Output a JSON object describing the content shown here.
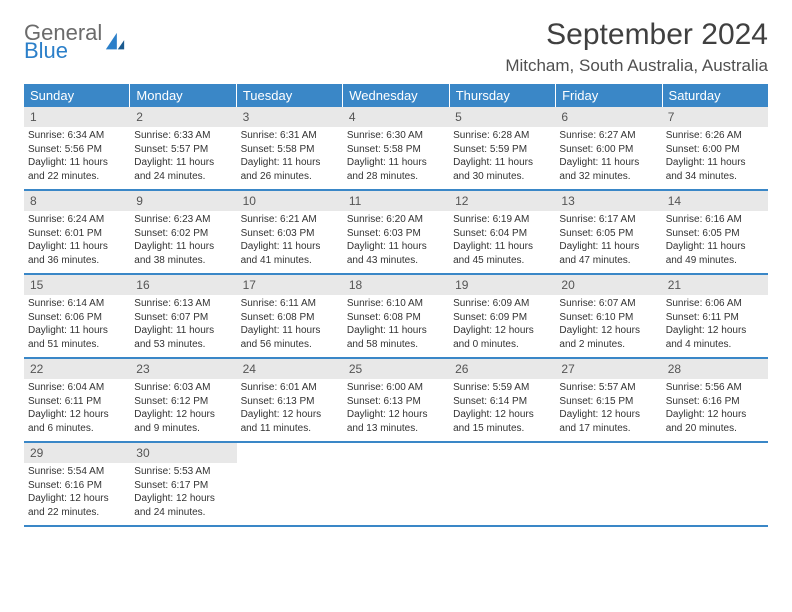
{
  "brand": {
    "word1": "General",
    "word2": "Blue"
  },
  "title": "September 2024",
  "location": "Mitcham, South Australia, Australia",
  "colors": {
    "header_bg": "#3a87c7",
    "header_text": "#ffffff",
    "daynum_bg": "#e8e8e8",
    "border": "#3a87c7",
    "brand_gray": "#6b6b6b",
    "brand_blue": "#2b7fc9"
  },
  "weekdays": [
    "Sunday",
    "Monday",
    "Tuesday",
    "Wednesday",
    "Thursday",
    "Friday",
    "Saturday"
  ],
  "weeks": [
    [
      {
        "n": "1",
        "sr": "Sunrise: 6:34 AM",
        "ss": "Sunset: 5:56 PM",
        "d1": "Daylight: 11 hours",
        "d2": "and 22 minutes."
      },
      {
        "n": "2",
        "sr": "Sunrise: 6:33 AM",
        "ss": "Sunset: 5:57 PM",
        "d1": "Daylight: 11 hours",
        "d2": "and 24 minutes."
      },
      {
        "n": "3",
        "sr": "Sunrise: 6:31 AM",
        "ss": "Sunset: 5:58 PM",
        "d1": "Daylight: 11 hours",
        "d2": "and 26 minutes."
      },
      {
        "n": "4",
        "sr": "Sunrise: 6:30 AM",
        "ss": "Sunset: 5:58 PM",
        "d1": "Daylight: 11 hours",
        "d2": "and 28 minutes."
      },
      {
        "n": "5",
        "sr": "Sunrise: 6:28 AM",
        "ss": "Sunset: 5:59 PM",
        "d1": "Daylight: 11 hours",
        "d2": "and 30 minutes."
      },
      {
        "n": "6",
        "sr": "Sunrise: 6:27 AM",
        "ss": "Sunset: 6:00 PM",
        "d1": "Daylight: 11 hours",
        "d2": "and 32 minutes."
      },
      {
        "n": "7",
        "sr": "Sunrise: 6:26 AM",
        "ss": "Sunset: 6:00 PM",
        "d1": "Daylight: 11 hours",
        "d2": "and 34 minutes."
      }
    ],
    [
      {
        "n": "8",
        "sr": "Sunrise: 6:24 AM",
        "ss": "Sunset: 6:01 PM",
        "d1": "Daylight: 11 hours",
        "d2": "and 36 minutes."
      },
      {
        "n": "9",
        "sr": "Sunrise: 6:23 AM",
        "ss": "Sunset: 6:02 PM",
        "d1": "Daylight: 11 hours",
        "d2": "and 38 minutes."
      },
      {
        "n": "10",
        "sr": "Sunrise: 6:21 AM",
        "ss": "Sunset: 6:03 PM",
        "d1": "Daylight: 11 hours",
        "d2": "and 41 minutes."
      },
      {
        "n": "11",
        "sr": "Sunrise: 6:20 AM",
        "ss": "Sunset: 6:03 PM",
        "d1": "Daylight: 11 hours",
        "d2": "and 43 minutes."
      },
      {
        "n": "12",
        "sr": "Sunrise: 6:19 AM",
        "ss": "Sunset: 6:04 PM",
        "d1": "Daylight: 11 hours",
        "d2": "and 45 minutes."
      },
      {
        "n": "13",
        "sr": "Sunrise: 6:17 AM",
        "ss": "Sunset: 6:05 PM",
        "d1": "Daylight: 11 hours",
        "d2": "and 47 minutes."
      },
      {
        "n": "14",
        "sr": "Sunrise: 6:16 AM",
        "ss": "Sunset: 6:05 PM",
        "d1": "Daylight: 11 hours",
        "d2": "and 49 minutes."
      }
    ],
    [
      {
        "n": "15",
        "sr": "Sunrise: 6:14 AM",
        "ss": "Sunset: 6:06 PM",
        "d1": "Daylight: 11 hours",
        "d2": "and 51 minutes."
      },
      {
        "n": "16",
        "sr": "Sunrise: 6:13 AM",
        "ss": "Sunset: 6:07 PM",
        "d1": "Daylight: 11 hours",
        "d2": "and 53 minutes."
      },
      {
        "n": "17",
        "sr": "Sunrise: 6:11 AM",
        "ss": "Sunset: 6:08 PM",
        "d1": "Daylight: 11 hours",
        "d2": "and 56 minutes."
      },
      {
        "n": "18",
        "sr": "Sunrise: 6:10 AM",
        "ss": "Sunset: 6:08 PM",
        "d1": "Daylight: 11 hours",
        "d2": "and 58 minutes."
      },
      {
        "n": "19",
        "sr": "Sunrise: 6:09 AM",
        "ss": "Sunset: 6:09 PM",
        "d1": "Daylight: 12 hours",
        "d2": "and 0 minutes."
      },
      {
        "n": "20",
        "sr": "Sunrise: 6:07 AM",
        "ss": "Sunset: 6:10 PM",
        "d1": "Daylight: 12 hours",
        "d2": "and 2 minutes."
      },
      {
        "n": "21",
        "sr": "Sunrise: 6:06 AM",
        "ss": "Sunset: 6:11 PM",
        "d1": "Daylight: 12 hours",
        "d2": "and 4 minutes."
      }
    ],
    [
      {
        "n": "22",
        "sr": "Sunrise: 6:04 AM",
        "ss": "Sunset: 6:11 PM",
        "d1": "Daylight: 12 hours",
        "d2": "and 6 minutes."
      },
      {
        "n": "23",
        "sr": "Sunrise: 6:03 AM",
        "ss": "Sunset: 6:12 PM",
        "d1": "Daylight: 12 hours",
        "d2": "and 9 minutes."
      },
      {
        "n": "24",
        "sr": "Sunrise: 6:01 AM",
        "ss": "Sunset: 6:13 PM",
        "d1": "Daylight: 12 hours",
        "d2": "and 11 minutes."
      },
      {
        "n": "25",
        "sr": "Sunrise: 6:00 AM",
        "ss": "Sunset: 6:13 PM",
        "d1": "Daylight: 12 hours",
        "d2": "and 13 minutes."
      },
      {
        "n": "26",
        "sr": "Sunrise: 5:59 AM",
        "ss": "Sunset: 6:14 PM",
        "d1": "Daylight: 12 hours",
        "d2": "and 15 minutes."
      },
      {
        "n": "27",
        "sr": "Sunrise: 5:57 AM",
        "ss": "Sunset: 6:15 PM",
        "d1": "Daylight: 12 hours",
        "d2": "and 17 minutes."
      },
      {
        "n": "28",
        "sr": "Sunrise: 5:56 AM",
        "ss": "Sunset: 6:16 PM",
        "d1": "Daylight: 12 hours",
        "d2": "and 20 minutes."
      }
    ],
    [
      {
        "n": "29",
        "sr": "Sunrise: 5:54 AM",
        "ss": "Sunset: 6:16 PM",
        "d1": "Daylight: 12 hours",
        "d2": "and 22 minutes."
      },
      {
        "n": "30",
        "sr": "Sunrise: 5:53 AM",
        "ss": "Sunset: 6:17 PM",
        "d1": "Daylight: 12 hours",
        "d2": "and 24 minutes."
      },
      {
        "empty": true
      },
      {
        "empty": true
      },
      {
        "empty": true
      },
      {
        "empty": true
      },
      {
        "empty": true
      }
    ]
  ]
}
